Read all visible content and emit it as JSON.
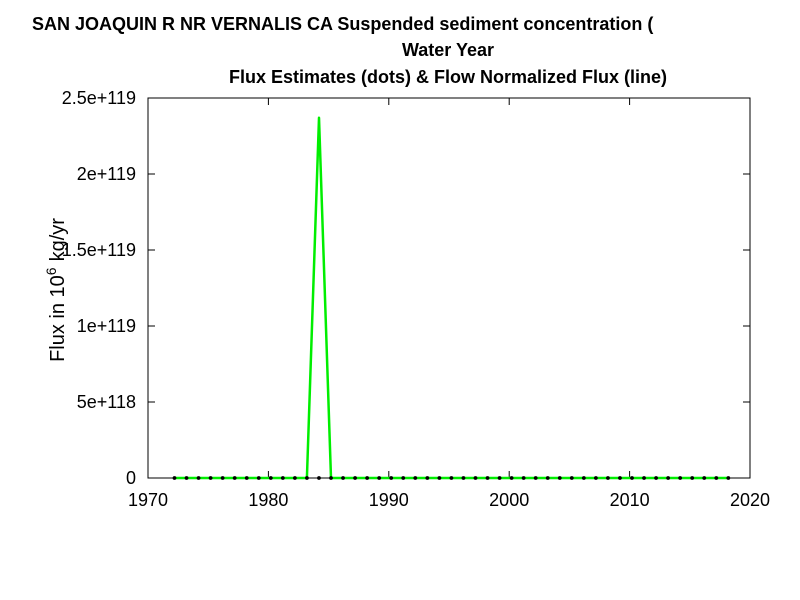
{
  "chart_data": {
    "type": "line",
    "title_lines": [
      "SAN JOAQUIN R NR VERNALIS CA   Suspended sediment concentration (",
      "Water Year",
      "Flux Estimates (dots) & Flow Normalized Flux (line)"
    ],
    "ylabel_main": "Flux in 10",
    "ylabel_superscript": "6",
    "ylabel_unit": "kg/yr",
    "xlim": [
      1970,
      2020
    ],
    "ylim": [
      0,
      2.5e+119
    ],
    "x_ticks": [
      1970,
      1980,
      1990,
      2000,
      2010,
      2020
    ],
    "x_tick_labels": [
      "1970",
      "1980",
      "1990",
      "2000",
      "2010",
      "2020"
    ],
    "y_ticks": [
      0,
      5e+118,
      1e+119,
      1.5e+119,
      2e+119,
      2.5e+119
    ],
    "y_tick_labels": [
      "0",
      "5e+118",
      "1e+119",
      "1.5e+119",
      "2e+119",
      "2.5e+119"
    ],
    "grid": false,
    "series": [
      {
        "kind": "points",
        "color": "#000000",
        "x": [
          1972.2,
          1973.2,
          1974.2,
          1975.2,
          1976.2,
          1977.2,
          1978.2,
          1979.2,
          1980.2,
          1981.2,
          1982.2,
          1983.2,
          1984.2,
          1985.2,
          1986.2,
          1987.2,
          1988.2,
          1989.2,
          1990.2,
          1991.2,
          1992.2,
          1993.2,
          1994.2,
          1995.2,
          1996.2,
          1997.2,
          1998.2,
          1999.2,
          2000.2,
          2001.2,
          2002.2,
          2003.2,
          2004.2,
          2005.2,
          2006.2,
          2007.2,
          2008.2,
          2009.2,
          2010.2,
          2011.2,
          2012.2,
          2013.2,
          2014.2,
          2015.2,
          2016.2,
          2017.2,
          2018.2
        ],
        "y": [
          0,
          0,
          0,
          0,
          0,
          0,
          0,
          0,
          0,
          0,
          0,
          0,
          0,
          0,
          0,
          0,
          0,
          0,
          0,
          0,
          0,
          0,
          0,
          0,
          0,
          0,
          0,
          0,
          0,
          0,
          0,
          0,
          0,
          0,
          0,
          0,
          0,
          0,
          0,
          0,
          0,
          0,
          0,
          0,
          0,
          0,
          0
        ]
      },
      {
        "kind": "line",
        "color": "#00ee00",
        "x": [
          1972.2,
          1973.2,
          1974.2,
          1975.2,
          1976.2,
          1977.2,
          1978.2,
          1979.2,
          1980.2,
          1981.2,
          1982.2,
          1983.2,
          1984.2,
          1985.2,
          1986.2,
          1987.2,
          1988.2,
          1989.2,
          1990.2,
          1991.2,
          1992.2,
          1993.2,
          1994.2,
          1995.2,
          1996.2,
          1997.2,
          1998.2,
          1999.2,
          2000.2,
          2001.2,
          2002.2,
          2003.2,
          2004.2,
          2005.2,
          2006.2,
          2007.2,
          2008.2,
          2009.2,
          2010.2,
          2011.2,
          2012.2,
          2013.2,
          2014.2,
          2015.2,
          2016.2,
          2017.2,
          2018.2
        ],
        "y": [
          0,
          0,
          0,
          0,
          0,
          0,
          0,
          0,
          0,
          0,
          0,
          0,
          2.37e+119,
          0,
          0,
          0,
          0,
          0,
          0,
          0,
          0,
          0,
          0,
          0,
          0,
          0,
          0,
          0,
          0,
          0,
          0,
          0,
          0,
          0,
          0,
          0,
          0,
          0,
          0,
          0,
          0,
          0,
          0,
          0,
          0,
          0,
          0
        ]
      }
    ]
  }
}
